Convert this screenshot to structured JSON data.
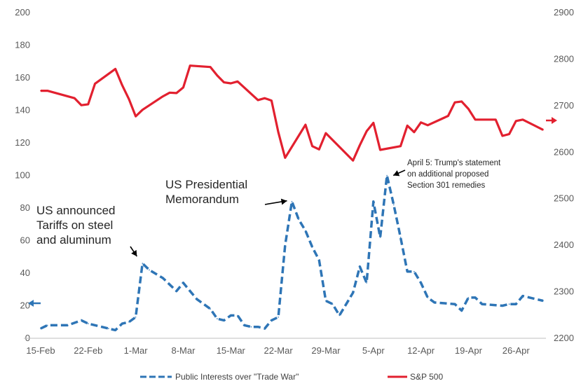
{
  "chart_data": {
    "type": "line",
    "x": [
      "15-Feb",
      "16-Feb",
      "17-Feb",
      "18-Feb",
      "19-Feb",
      "20-Feb",
      "21-Feb",
      "22-Feb",
      "23-Feb",
      "24-Feb",
      "25-Feb",
      "26-Feb",
      "27-Feb",
      "28-Feb",
      "1-Mar",
      "2-Mar",
      "3-Mar",
      "4-Mar",
      "5-Mar",
      "6-Mar",
      "7-Mar",
      "8-Mar",
      "9-Mar",
      "10-Mar",
      "11-Mar",
      "12-Mar",
      "13-Mar",
      "14-Mar",
      "15-Mar",
      "16-Mar",
      "17-Mar",
      "18-Mar",
      "19-Mar",
      "20-Mar",
      "21-Mar",
      "22-Mar",
      "23-Mar",
      "24-Mar",
      "25-Mar",
      "26-Mar",
      "27-Mar",
      "28-Mar",
      "29-Mar",
      "30-Mar",
      "31-Mar",
      "1-Apr",
      "2-Apr",
      "3-Apr",
      "4-Apr",
      "5-Apr",
      "6-Apr",
      "7-Apr",
      "8-Apr",
      "9-Apr",
      "10-Apr",
      "11-Apr",
      "12-Apr",
      "13-Apr",
      "14-Apr",
      "15-Apr",
      "16-Apr",
      "17-Apr",
      "18-Apr",
      "19-Apr",
      "20-Apr",
      "21-Apr",
      "22-Apr",
      "23-Apr",
      "24-Apr",
      "25-Apr",
      "26-Apr",
      "27-Apr",
      "28-Apr",
      "29-Apr",
      "30-Apr"
    ],
    "x_ticks": [
      "15-Feb",
      "22-Feb",
      "1-Mar",
      "8-Mar",
      "15-Mar",
      "22-Mar",
      "29-Mar",
      "5-Apr",
      "12-Apr",
      "19-Apr",
      "26-Apr"
    ],
    "y_left": {
      "min": 0,
      "max": 200,
      "step": 20
    },
    "y_right": {
      "min": 2200,
      "max": 2900,
      "step": 100
    },
    "grid": false,
    "legend_position": "bottom",
    "series": [
      {
        "name": "Public Interests over \"Trade War\"",
        "axis": "left",
        "color": "#2e75b6",
        "style": "dashed",
        "points": [
          {
            "x": "15-Feb",
            "y": 6
          },
          {
            "x": "16-Feb",
            "y": 8
          },
          {
            "x": "19-Feb",
            "y": 8
          },
          {
            "x": "21-Feb",
            "y": 11
          },
          {
            "x": "22-Feb",
            "y": 9
          },
          {
            "x": "24-Feb",
            "y": 7
          },
          {
            "x": "25-Feb",
            "y": 6
          },
          {
            "x": "26-Feb",
            "y": 5
          },
          {
            "x": "27-Feb",
            "y": 9
          },
          {
            "x": "28-Feb",
            "y": 10
          },
          {
            "x": "1-Mar",
            "y": 13
          },
          {
            "x": "2-Mar",
            "y": 46
          },
          {
            "x": "3-Mar",
            "y": 42
          },
          {
            "x": "5-Mar",
            "y": 37
          },
          {
            "x": "6-Mar",
            "y": 33
          },
          {
            "x": "7-Mar",
            "y": 29
          },
          {
            "x": "8-Mar",
            "y": 34
          },
          {
            "x": "9-Mar",
            "y": 29
          },
          {
            "x": "10-Mar",
            "y": 24
          },
          {
            "x": "12-Mar",
            "y": 18
          },
          {
            "x": "13-Mar",
            "y": 12
          },
          {
            "x": "14-Mar",
            "y": 11
          },
          {
            "x": "15-Mar",
            "y": 14
          },
          {
            "x": "16-Mar",
            "y": 14
          },
          {
            "x": "17-Mar",
            "y": 8
          },
          {
            "x": "18-Mar",
            "y": 7
          },
          {
            "x": "19-Mar",
            "y": 7
          },
          {
            "x": "20-Mar",
            "y": 6
          },
          {
            "x": "21-Mar",
            "y": 11
          },
          {
            "x": "22-Mar",
            "y": 13
          },
          {
            "x": "23-Mar",
            "y": 57
          },
          {
            "x": "24-Mar",
            "y": 84
          },
          {
            "x": "25-Mar",
            "y": 73
          },
          {
            "x": "26-Mar",
            "y": 66
          },
          {
            "x": "27-Mar",
            "y": 56
          },
          {
            "x": "28-Mar",
            "y": 48
          },
          {
            "x": "29-Mar",
            "y": 23
          },
          {
            "x": "30-Mar",
            "y": 21
          },
          {
            "x": "31-Mar",
            "y": 14
          },
          {
            "x": "1-Apr",
            "y": 21
          },
          {
            "x": "2-Apr",
            "y": 28
          },
          {
            "x": "3-Apr",
            "y": 44
          },
          {
            "x": "4-Apr",
            "y": 34
          },
          {
            "x": "5-Apr",
            "y": 84
          },
          {
            "x": "6-Apr",
            "y": 62
          },
          {
            "x": "7-Apr",
            "y": 100
          },
          {
            "x": "8-Apr",
            "y": 82
          },
          {
            "x": "9-Apr",
            "y": 62
          },
          {
            "x": "10-Apr",
            "y": 41
          },
          {
            "x": "11-Apr",
            "y": 41
          },
          {
            "x": "12-Apr",
            "y": 34
          },
          {
            "x": "13-Apr",
            "y": 25
          },
          {
            "x": "14-Apr",
            "y": 22
          },
          {
            "x": "17-Apr",
            "y": 21
          },
          {
            "x": "18-Apr",
            "y": 17
          },
          {
            "x": "19-Apr",
            "y": 25
          },
          {
            "x": "20-Apr",
            "y": 25
          },
          {
            "x": "21-Apr",
            "y": 21
          },
          {
            "x": "24-Apr",
            "y": 20
          },
          {
            "x": "25-Apr",
            "y": 21
          },
          {
            "x": "26-Apr",
            "y": 21
          },
          {
            "x": "27-Apr",
            "y": 26
          },
          {
            "x": "30-Apr",
            "y": 23
          }
        ]
      },
      {
        "name": "S&P 500",
        "axis": "right",
        "color": "#e2202f",
        "style": "solid",
        "points": [
          {
            "x": "15-Feb",
            "y": 2732
          },
          {
            "x": "16-Feb",
            "y": 2732
          },
          {
            "x": "20-Feb",
            "y": 2716
          },
          {
            "x": "21-Feb",
            "y": 2701
          },
          {
            "x": "22-Feb",
            "y": 2703
          },
          {
            "x": "23-Feb",
            "y": 2747
          },
          {
            "x": "26-Feb",
            "y": 2779
          },
          {
            "x": "27-Feb",
            "y": 2744
          },
          {
            "x": "28-Feb",
            "y": 2714
          },
          {
            "x": "1-Mar",
            "y": 2677
          },
          {
            "x": "2-Mar",
            "y": 2691
          },
          {
            "x": "5-Mar",
            "y": 2720
          },
          {
            "x": "6-Mar",
            "y": 2728
          },
          {
            "x": "7-Mar",
            "y": 2727
          },
          {
            "x": "8-Mar",
            "y": 2739
          },
          {
            "x": "9-Mar",
            "y": 2786
          },
          {
            "x": "12-Mar",
            "y": 2783
          },
          {
            "x": "13-Mar",
            "y": 2765
          },
          {
            "x": "14-Mar",
            "y": 2750
          },
          {
            "x": "15-Mar",
            "y": 2748
          },
          {
            "x": "16-Mar",
            "y": 2752
          },
          {
            "x": "19-Mar",
            "y": 2712
          },
          {
            "x": "20-Mar",
            "y": 2716
          },
          {
            "x": "21-Mar",
            "y": 2711
          },
          {
            "x": "22-Mar",
            "y": 2643
          },
          {
            "x": "23-Mar",
            "y": 2588
          },
          {
            "x": "26-Mar",
            "y": 2659
          },
          {
            "x": "27-Mar",
            "y": 2613
          },
          {
            "x": "28-Mar",
            "y": 2606
          },
          {
            "x": "29-Mar",
            "y": 2641
          },
          {
            "x": "2-Apr",
            "y": 2582
          },
          {
            "x": "3-Apr",
            "y": 2615
          },
          {
            "x": "4-Apr",
            "y": 2645
          },
          {
            "x": "5-Apr",
            "y": 2663
          },
          {
            "x": "6-Apr",
            "y": 2605
          },
          {
            "x": "9-Apr",
            "y": 2613
          },
          {
            "x": "10-Apr",
            "y": 2657
          },
          {
            "x": "11-Apr",
            "y": 2643
          },
          {
            "x": "12-Apr",
            "y": 2664
          },
          {
            "x": "13-Apr",
            "y": 2658
          },
          {
            "x": "16-Apr",
            "y": 2678
          },
          {
            "x": "17-Apr",
            "y": 2707
          },
          {
            "x": "18-Apr",
            "y": 2709
          },
          {
            "x": "19-Apr",
            "y": 2693
          },
          {
            "x": "20-Apr",
            "y": 2670
          },
          {
            "x": "23-Apr",
            "y": 2670
          },
          {
            "x": "24-Apr",
            "y": 2635
          },
          {
            "x": "25-Apr",
            "y": 2639
          },
          {
            "x": "26-Apr",
            "y": 2667
          },
          {
            "x": "27-Apr",
            "y": 2670
          },
          {
            "x": "30-Apr",
            "y": 2648
          }
        ]
      }
    ],
    "annotations": [
      {
        "lines": [
          "US announced",
          "Tariffs on steel",
          "and aluminum"
        ],
        "x": "2-Mar",
        "y": 46
      },
      {
        "lines": [
          "US Presidential",
          "Memorandum"
        ],
        "x": "24-Mar",
        "y": 84
      },
      {
        "lines": [
          "April 5: Trump's statement",
          "on additional proposed",
          "Section 301 remedies"
        ],
        "x": "7-Apr",
        "y": 100
      }
    ]
  }
}
